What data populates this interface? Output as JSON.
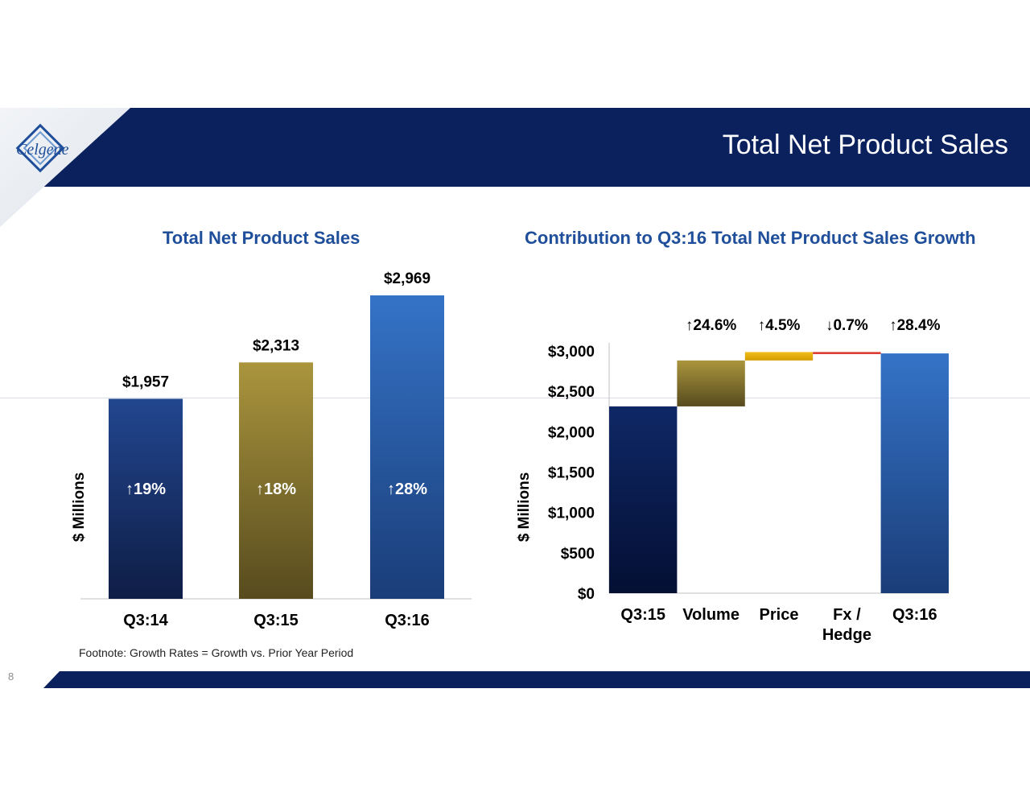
{
  "header": {
    "title": "Total Net Product Sales",
    "logo_text": "Celgene",
    "logo_icon": "celgene-logo-icon"
  },
  "colors": {
    "header": "#0b215e",
    "title_blue": "#1f4e9a",
    "navy": "#142d66",
    "gold": "#a6913b",
    "blue": "#3370c4",
    "price_yellow": "#f0b400",
    "fx_red": "#d9332a"
  },
  "footnote": "Footnote: Growth Rates = Growth vs. Prior Year Period",
  "page_number": "8",
  "chart_data": [
    {
      "type": "bar",
      "title": "Total Net Product Sales",
      "ylabel": "$ Millions",
      "xlabel": "",
      "categories": [
        "Q3:14",
        "Q3:15",
        "Q3:16"
      ],
      "values": [
        1957,
        2313,
        2969
      ],
      "value_labels": [
        "$1,957",
        "$2,313",
        "$2,969"
      ],
      "growth_labels": [
        "↑19%",
        "↑18%",
        "↑28%"
      ],
      "bar_colors": [
        "navy",
        "gold",
        "blue"
      ],
      "ylim": [
        0,
        2969
      ],
      "grid": false
    },
    {
      "type": "bar",
      "subtype": "waterfall",
      "title": "Contribution to Q3:16 Total Net Product Sales Growth",
      "ylabel": "$ Millions",
      "xlabel": "",
      "categories": [
        "Q3:15",
        "Volume",
        "Price",
        "Fx /\nHedge",
        "Q3:16"
      ],
      "steps": [
        {
          "label": "Q3:15",
          "kind": "total",
          "start": 0,
          "end": 2313,
          "color": "navy"
        },
        {
          "label": "Volume",
          "kind": "delta",
          "start": 2313,
          "end": 2882,
          "color": "gold"
        },
        {
          "label": "Price",
          "kind": "delta",
          "start": 2882,
          "end": 2986,
          "color": "price_yellow"
        },
        {
          "label": "Fx / Hedge",
          "kind": "delta",
          "start": 2986,
          "end": 2969,
          "color": "fx_red"
        },
        {
          "label": "Q3:16",
          "kind": "total",
          "start": 0,
          "end": 2969,
          "color": "blue"
        }
      ],
      "change_labels": [
        "",
        "↑24.6%",
        "↑4.5%",
        "↓0.7%",
        "↑28.4%"
      ],
      "yticks": [
        0,
        500,
        1000,
        1500,
        2000,
        2500,
        3000
      ],
      "ytick_labels": [
        "$0",
        "$500",
        "$1,000",
        "$1,500",
        "$2,000",
        "$2,500",
        "$3,000"
      ],
      "ylim": [
        0,
        3100
      ],
      "grid": false
    }
  ]
}
